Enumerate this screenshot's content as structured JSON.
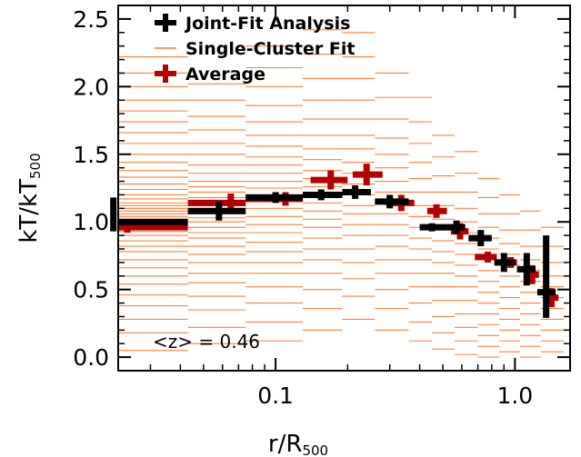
{
  "chart_data": {
    "type": "scatter",
    "title": "",
    "xlabel": {
      "main": "r/R",
      "sub": "500"
    },
    "ylabel": {
      "main": "kT/kT",
      "sub": "500"
    },
    "xscale": "log",
    "xlim": [
      0.022,
      1.7
    ],
    "ylim": [
      -0.1,
      2.6
    ],
    "yticks": [
      0.0,
      0.5,
      1.0,
      1.5,
      2.0,
      2.5
    ],
    "ytick_labels": [
      "0.0",
      "0.5",
      "1.0",
      "1.5",
      "2.0",
      "2.5"
    ],
    "xticks": [
      0.1,
      1.0
    ],
    "xtick_labels": [
      "0.1",
      "1.0"
    ],
    "legend": {
      "placement": "top-left",
      "entries": [
        {
          "label": "Joint-Fit Analysis",
          "color": "#000000",
          "marker": "cross"
        },
        {
          "label": "Single-Cluster Fit",
          "color": "#ff7f3a",
          "marker": "line"
        },
        {
          "label": "Average",
          "color": "#b30000",
          "marker": "cross"
        }
      ]
    },
    "annotation": "<z> = 0.46",
    "colors": {
      "joint": "#000000",
      "average": "#b30000",
      "single": "#ff7f3a"
    },
    "series": [
      {
        "name": "Joint-Fit Analysis",
        "points": [
          {
            "x": 0.021,
            "y": 1.0,
            "xerr": [
              0.0,
              0.043
            ],
            "yerr": [
              0.07,
              0.18
            ]
          },
          {
            "x": 0.058,
            "y": 1.08,
            "xerr": [
              0.043,
              0.075
            ],
            "yerr": [
              0.07,
              0.07
            ]
          },
          {
            "x": 0.1,
            "y": 1.18,
            "xerr": [
              0.075,
              0.13
            ],
            "yerr": [
              0.04,
              0.04
            ]
          },
          {
            "x": 0.155,
            "y": 1.2,
            "xerr": [
              0.13,
              0.19
            ],
            "yerr": [
              0.04,
              0.04
            ]
          },
          {
            "x": 0.215,
            "y": 1.22,
            "xerr": [
              0.19,
              0.25
            ],
            "yerr": [
              0.05,
              0.05
            ]
          },
          {
            "x": 0.3,
            "y": 1.15,
            "xerr": [
              0.26,
              0.36
            ],
            "yerr": [
              0.05,
              0.05
            ]
          },
          {
            "x": 0.45,
            "y": 0.96,
            "xerr": [
              0.4,
              0.52
            ],
            "yerr": [
              0.03,
              0.03
            ]
          },
          {
            "x": 0.57,
            "y": 0.96,
            "xerr": [
              0.52,
              0.62
            ],
            "yerr": [
              0.05,
              0.05
            ]
          },
          {
            "x": 0.72,
            "y": 0.88,
            "xerr": [
              0.64,
              0.8
            ],
            "yerr": [
              0.06,
              0.06
            ]
          },
          {
            "x": 0.9,
            "y": 0.7,
            "xerr": [
              0.82,
              1.0
            ],
            "yerr": [
              0.07,
              0.07
            ]
          },
          {
            "x": 1.12,
            "y": 0.65,
            "xerr": [
              1.02,
              1.22
            ],
            "yerr": [
              0.12,
              0.12
            ]
          },
          {
            "x": 1.35,
            "y": 0.48,
            "xerr": [
              1.24,
              1.48
            ],
            "yerr": [
              0.19,
              0.42
            ]
          }
        ]
      },
      {
        "name": "Average",
        "points": [
          {
            "x": 0.024,
            "y": 0.96,
            "xerr": [
              0.0,
              0.043
            ],
            "yerr": [
              0.04,
              0.04
            ]
          },
          {
            "x": 0.065,
            "y": 1.14,
            "xerr": [
              0.043,
              0.075
            ],
            "yerr": [
              0.07,
              0.07
            ]
          },
          {
            "x": 0.11,
            "y": 1.17,
            "xerr": [
              0.075,
              0.13
            ],
            "yerr": [
              0.05,
              0.05
            ]
          },
          {
            "x": 0.17,
            "y": 1.31,
            "xerr": [
              0.14,
              0.2
            ],
            "yerr": [
              0.07,
              0.07
            ]
          },
          {
            "x": 0.24,
            "y": 1.35,
            "xerr": [
              0.21,
              0.28
            ],
            "yerr": [
              0.08,
              0.08
            ]
          },
          {
            "x": 0.335,
            "y": 1.14,
            "xerr": [
              0.29,
              0.38
            ],
            "yerr": [
              0.06,
              0.06
            ]
          },
          {
            "x": 0.47,
            "y": 1.08,
            "xerr": [
              0.43,
              0.52
            ],
            "yerr": [
              0.05,
              0.05
            ]
          },
          {
            "x": 0.59,
            "y": 0.93,
            "xerr": [
              0.54,
              0.64
            ],
            "yerr": [
              0.06,
              0.06
            ]
          },
          {
            "x": 0.77,
            "y": 0.74,
            "xerr": [
              0.68,
              0.84
            ],
            "yerr": [
              0.04,
              0.04
            ]
          },
          {
            "x": 0.96,
            "y": 0.7,
            "xerr": [
              0.9,
              1.02
            ],
            "yerr": [
              0.04,
              0.04
            ]
          },
          {
            "x": 1.18,
            "y": 0.61,
            "xerr": [
              1.1,
              1.26
            ],
            "yerr": [
              0.07,
              0.07
            ]
          },
          {
            "x": 1.42,
            "y": 0.44,
            "xerr": [
              1.32,
              1.52
            ],
            "yerr": [
              0.07,
              0.07
            ]
          }
        ]
      },
      {
        "name": "Single-Cluster Fit",
        "bins": [
          {
            "xmin": 0.022,
            "xmax": 0.043,
            "y": [
              0.05,
              0.18,
              0.28,
              0.38,
              0.46,
              0.54,
              0.6,
              0.66,
              0.72,
              0.78,
              0.82,
              0.86,
              0.9,
              0.93,
              0.96,
              0.98,
              1.0,
              1.02,
              1.04,
              1.06,
              1.08,
              1.1,
              1.12,
              1.14,
              1.17,
              1.2,
              1.24,
              1.28,
              1.33,
              1.38,
              1.44,
              1.5,
              1.58,
              1.66,
              1.74,
              1.82,
              1.9,
              2.0,
              2.1,
              2.22
            ]
          },
          {
            "xmin": 0.043,
            "xmax": 0.075,
            "y": [
              0.1,
              0.22,
              0.35,
              0.45,
              0.55,
              0.62,
              0.7,
              0.76,
              0.82,
              0.88,
              0.92,
              0.96,
              1.0,
              1.03,
              1.06,
              1.09,
              1.12,
              1.15,
              1.18,
              1.22,
              1.26,
              1.3,
              1.36,
              1.42,
              1.5,
              1.58,
              1.68,
              1.78,
              1.9,
              2.02
            ]
          },
          {
            "xmin": 0.075,
            "xmax": 0.13,
            "y": [
              0.12,
              0.26,
              0.4,
              0.52,
              0.62,
              0.7,
              0.78,
              0.85,
              0.92,
              0.98,
              1.04,
              1.1,
              1.15,
              1.2,
              1.25,
              1.3,
              1.36,
              1.42,
              1.48,
              1.56,
              1.64,
              1.74,
              1.86,
              2.0,
              2.14,
              2.3
            ]
          },
          {
            "xmin": 0.13,
            "xmax": 0.19,
            "y": [
              0.2,
              0.36,
              0.5,
              0.62,
              0.72,
              0.8,
              0.88,
              0.96,
              1.02,
              1.08,
              1.14,
              1.2,
              1.26,
              1.32,
              1.38,
              1.46,
              1.54,
              1.64,
              1.76,
              1.9,
              2.06,
              2.24,
              2.42
            ]
          },
          {
            "xmin": 0.19,
            "xmax": 0.26,
            "y": [
              0.28,
              0.45,
              0.58,
              0.7,
              0.8,
              0.9,
              0.98,
              1.06,
              1.12,
              1.2,
              1.28,
              1.36,
              1.44,
              1.54,
              1.64,
              1.76,
              1.9,
              2.06,
              2.22,
              2.4
            ]
          },
          {
            "xmin": 0.26,
            "xmax": 0.36,
            "y": [
              0.2,
              0.36,
              0.5,
              0.62,
              0.72,
              0.82,
              0.9,
              0.98,
              1.06,
              1.14,
              1.22,
              1.3,
              1.4,
              1.5,
              1.62,
              1.76,
              1.92,
              2.1
            ]
          },
          {
            "xmin": 0.36,
            "xmax": 0.45,
            "y": [
              0.12,
              0.26,
              0.4,
              0.52,
              0.62,
              0.72,
              0.8,
              0.88,
              0.96,
              1.04,
              1.12,
              1.22,
              1.32,
              1.44,
              1.58,
              1.74,
              1.92
            ]
          },
          {
            "xmin": 0.45,
            "xmax": 0.56,
            "y": [
              0.06,
              0.18,
              0.3,
              0.42,
              0.52,
              0.62,
              0.7,
              0.78,
              0.86,
              0.94,
              1.02,
              1.12,
              1.22,
              1.34,
              1.48,
              1.64
            ]
          },
          {
            "xmin": 0.56,
            "xmax": 0.7,
            "y": [
              0.02,
              0.12,
              0.22,
              0.32,
              0.42,
              0.52,
              0.6,
              0.68,
              0.76,
              0.84,
              0.92,
              1.0,
              1.1,
              1.22,
              1.36,
              1.52
            ]
          },
          {
            "xmin": 0.7,
            "xmax": 0.86,
            "y": [
              0.0,
              0.08,
              0.16,
              0.24,
              0.32,
              0.4,
              0.48,
              0.56,
              0.64,
              0.72,
              0.8,
              0.88,
              0.96,
              1.06,
              1.18,
              1.32
            ]
          },
          {
            "xmin": 0.86,
            "xmax": 1.05,
            "y": [
              0.04,
              0.12,
              0.2,
              0.28,
              0.36,
              0.44,
              0.52,
              0.6,
              0.68,
              0.76,
              0.84,
              0.94,
              1.06,
              1.2
            ]
          },
          {
            "xmin": 1.05,
            "xmax": 1.28,
            "y": [
              0.0,
              0.08,
              0.16,
              0.24,
              0.32,
              0.4,
              0.48,
              0.56,
              0.64,
              0.72,
              0.82,
              0.94,
              1.08
            ]
          },
          {
            "xmin": 1.28,
            "xmax": 1.6,
            "y": [
              0.04,
              0.12,
              0.2,
              0.28,
              0.36,
              0.44,
              0.52,
              0.6,
              0.7,
              0.82,
              0.96
            ]
          }
        ]
      }
    ]
  }
}
